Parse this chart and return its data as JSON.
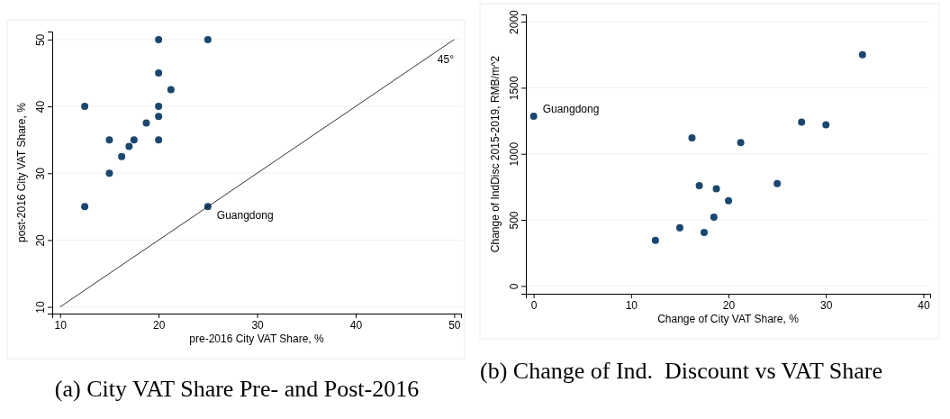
{
  "chart_data": [
    {
      "type": "scatter",
      "xlabel": "pre-2016 City VAT Share, %",
      "ylabel": "post-2016 City VAT Share, %",
      "xlim": [
        9.2,
        50.7
      ],
      "ylim": [
        9,
        51.2
      ],
      "xticks": [
        10,
        20,
        30,
        40,
        50
      ],
      "yticks": [
        10,
        20,
        30,
        40,
        50
      ],
      "grid": "y",
      "series": [
        {
          "color": "#1a476f",
          "marker": "circle",
          "x": [
            12.5,
            12.5,
            15,
            15,
            16.25,
            17,
            17.5,
            18.75,
            20,
            20,
            20,
            20,
            20,
            21.25,
            25,
            25
          ],
          "values": [
            40,
            25,
            35,
            30,
            32.5,
            34,
            35,
            37.5,
            50,
            45,
            40,
            38.5,
            35,
            42.5,
            50,
            25
          ]
        },
        {
          "type": "line",
          "color": "#000000",
          "marker": "none",
          "line_style": "solid",
          "x": [
            10,
            50
          ],
          "values": [
            10,
            50
          ]
        }
      ],
      "annotations": [
        "45°",
        {
          "text": "Guangdong",
          "x": 25,
          "y": 25
        },
        "(a) City VAT Share Pre- and Post-2016"
      ]
    },
    {
      "type": "scatter",
      "xlabel": "Change of City VAT Share, %",
      "ylabel": "Change of IndDisc 2015-2019, RMB/m^2",
      "xlim": [
        -0.8,
        40.7
      ],
      "ylim": [
        -59,
        2055
      ],
      "xticks": [
        0,
        10,
        20,
        30,
        40
      ],
      "yticks": [
        0,
        500,
        1000,
        1500,
        2000
      ],
      "grid": "y",
      "series": [
        {
          "color": "#1a476f",
          "marker": "circle",
          "x": [
            0,
            12.5,
            15,
            16.25,
            17,
            17.5,
            18.5,
            18.75,
            20,
            21.25,
            25,
            27.5,
            30,
            33.75
          ],
          "values": [
            1285,
            345,
            440,
            1120,
            760,
            405,
            520,
            735,
            645,
            1085,
            775,
            1240,
            1220,
            1750
          ]
        }
      ],
      "annotations": [
        {
          "text": "Guangdong",
          "x": 0,
          "y": 1285
        },
        "(b) Change of Ind.  Discount vs VAT Share"
      ]
    }
  ]
}
